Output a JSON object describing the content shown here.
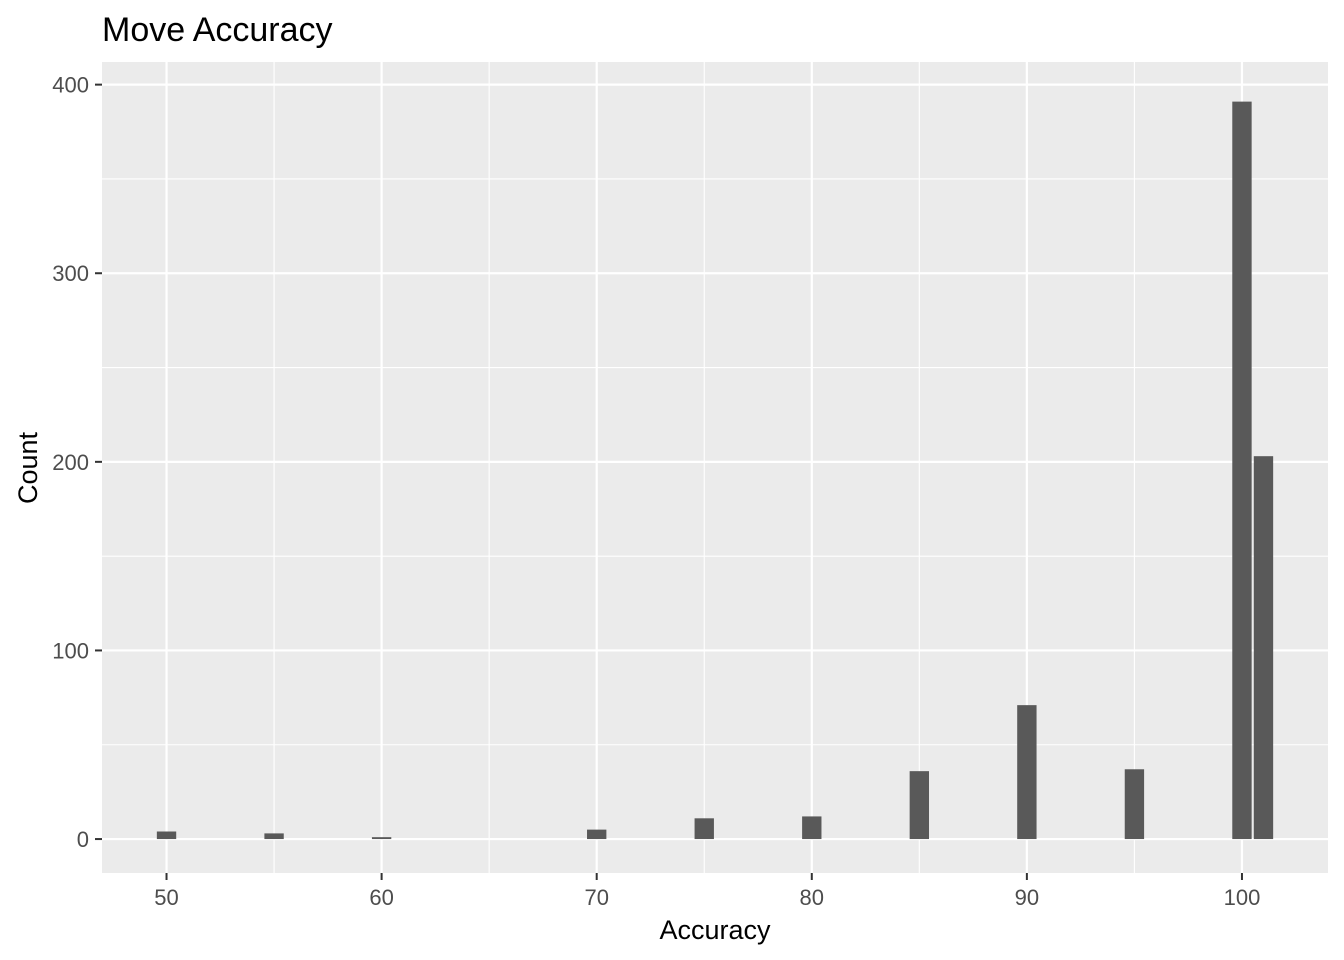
{
  "chart_data": {
    "type": "bar",
    "title": "Move Accuracy",
    "xlabel": "Accuracy",
    "ylabel": "Count",
    "xlim": [
      47,
      104
    ],
    "ylim": [
      -18,
      412
    ],
    "x_ticks": [
      50,
      60,
      70,
      80,
      90,
      100
    ],
    "y_ticks": [
      0,
      100,
      200,
      300,
      400
    ],
    "bar_width": 0.9,
    "bars": [
      {
        "x": 50,
        "count": 4
      },
      {
        "x": 55,
        "count": 3
      },
      {
        "x": 60,
        "count": 1
      },
      {
        "x": 70,
        "count": 5
      },
      {
        "x": 75,
        "count": 11
      },
      {
        "x": 80,
        "count": 12
      },
      {
        "x": 85,
        "count": 36
      },
      {
        "x": 90,
        "count": 71
      },
      {
        "x": 95,
        "count": 37
      },
      {
        "x": 100,
        "count": 391
      },
      {
        "x": 101,
        "count": 203
      }
    ],
    "grid": true,
    "colors": {
      "panel": "#ebebeb",
      "grid_major": "#ffffff",
      "bar": "#595959",
      "tick": "#333333"
    }
  }
}
